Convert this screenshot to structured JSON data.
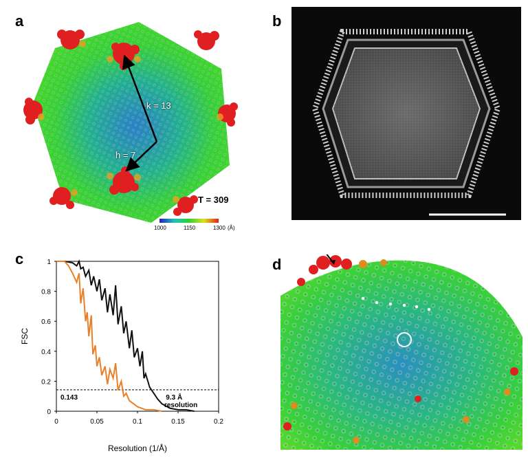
{
  "figure": {
    "panel_a": {
      "label": "a",
      "arrow_k_label": "k = 13",
      "arrow_h_label": "h = 7",
      "t_number": "T = 309",
      "colorbar": {
        "min": "1000",
        "mid": "1150",
        "max": "1300",
        "unit": "(Å)",
        "colors": [
          "#2020c0",
          "#20c0c0",
          "#30d030",
          "#e0e020",
          "#e02020"
        ]
      }
    },
    "panel_b": {
      "label": "b"
    },
    "panel_c": {
      "label": "c"
    },
    "panel_d": {
      "label": "d"
    }
  },
  "chart_data": {
    "type": "line",
    "title": "",
    "xlabel": "Resolution (1/Å)",
    "ylabel": "FSC",
    "xlim": [
      0,
      0.2
    ],
    "ylim": [
      0,
      1
    ],
    "xticks": [
      "0",
      "0.05",
      "0.1",
      "0.15",
      "0.2"
    ],
    "yticks": [
      "0",
      "0.2",
      "0.4",
      "0.6",
      "0.8",
      "1"
    ],
    "threshold": {
      "value": 0.143,
      "label": "0.143"
    },
    "annotation": {
      "line1": "9.3 Å",
      "line2": "resolution"
    },
    "series": [
      {
        "name": "black",
        "color": "#111111",
        "x": [
          0,
          0.01,
          0.02,
          0.025,
          0.028,
          0.03,
          0.033,
          0.036,
          0.04,
          0.043,
          0.046,
          0.05,
          0.053,
          0.056,
          0.06,
          0.063,
          0.066,
          0.07,
          0.073,
          0.076,
          0.08,
          0.083,
          0.086,
          0.09,
          0.093,
          0.096,
          0.1,
          0.103,
          0.106,
          0.108,
          0.11,
          0.115,
          0.12,
          0.125,
          0.13,
          0.14,
          0.15,
          0.16,
          0.17
        ],
        "y": [
          1.0,
          1.0,
          0.99,
          0.97,
          1.0,
          0.95,
          0.96,
          0.9,
          0.94,
          0.84,
          0.9,
          0.8,
          0.88,
          0.74,
          0.82,
          0.66,
          0.78,
          0.64,
          0.84,
          0.58,
          0.7,
          0.52,
          0.6,
          0.42,
          0.54,
          0.36,
          0.42,
          0.3,
          0.4,
          0.22,
          0.25,
          0.16,
          0.12,
          0.08,
          0.05,
          0.02,
          0.01,
          0.01,
          0.0
        ]
      },
      {
        "name": "orange",
        "color": "#e8802a",
        "x": [
          0,
          0.01,
          0.015,
          0.02,
          0.025,
          0.028,
          0.03,
          0.033,
          0.036,
          0.038,
          0.04,
          0.043,
          0.045,
          0.048,
          0.05,
          0.053,
          0.056,
          0.06,
          0.063,
          0.066,
          0.07,
          0.073,
          0.076,
          0.08,
          0.083,
          0.086,
          0.09,
          0.095,
          0.1,
          0.105,
          0.11,
          0.12,
          0.13
        ],
        "y": [
          1.0,
          1.0,
          0.97,
          0.92,
          0.86,
          0.92,
          0.72,
          0.82,
          0.6,
          0.66,
          0.5,
          0.64,
          0.38,
          0.44,
          0.3,
          0.36,
          0.24,
          0.3,
          0.18,
          0.28,
          0.22,
          0.32,
          0.14,
          0.2,
          0.1,
          0.12,
          0.07,
          0.05,
          0.03,
          0.02,
          0.01,
          0.01,
          0.0
        ]
      }
    ]
  }
}
